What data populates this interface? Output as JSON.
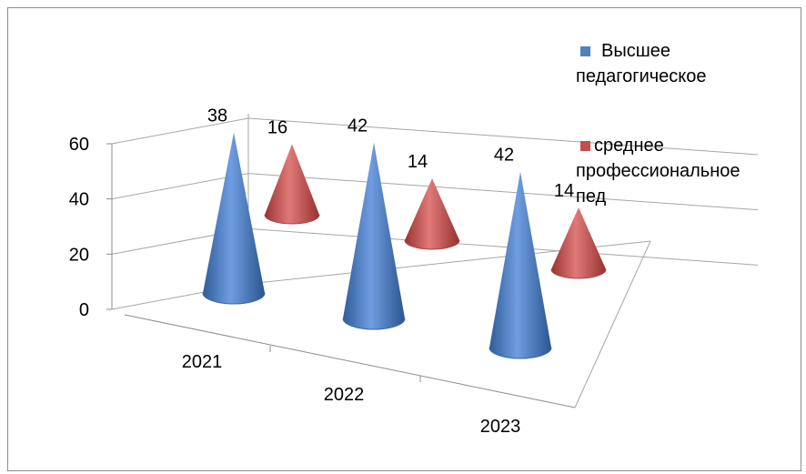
{
  "chart_data": {
    "type": "bar",
    "subtype": "3d-cone",
    "categories": [
      "2021",
      "2022",
      "2023"
    ],
    "series": [
      {
        "name": "Высшее педагогическое",
        "values": [
          38,
          42,
          42
        ],
        "color": "#4f81bd"
      },
      {
        "name": "среднее профессиональное пед",
        "values": [
          16,
          14,
          14
        ],
        "color": "#c0504d"
      }
    ],
    "yticks": [
      "0",
      "20",
      "40",
      "60"
    ],
    "ylim": [
      0,
      60
    ],
    "grid": true,
    "legend": "right",
    "data_labels": true
  },
  "legend": {
    "item1_line1": "Высшее",
    "item1_line2": "педагогическое",
    "item2_line1": "среднее",
    "item2_line2": "профессиональное",
    "item2_line3": "пед"
  }
}
